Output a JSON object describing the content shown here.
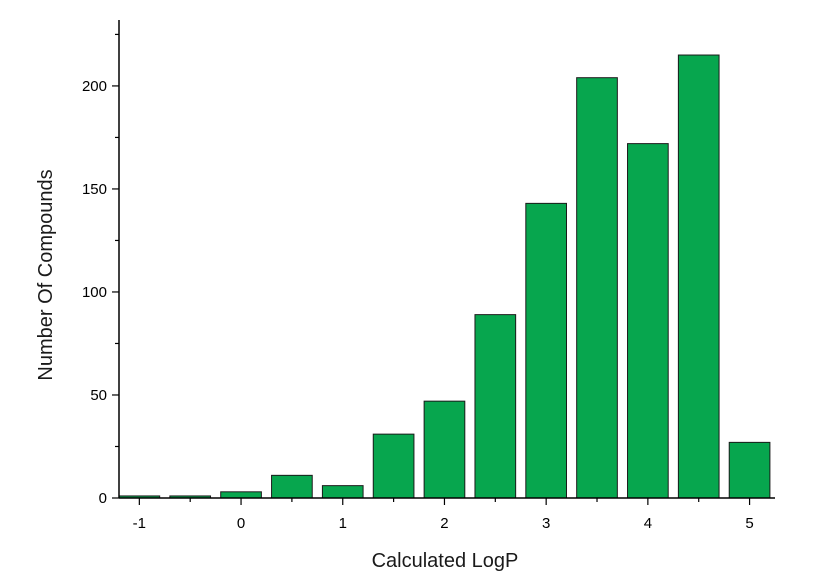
{
  "chart_data": {
    "type": "bar",
    "title": "",
    "xlabel": "Calculated LogP",
    "ylabel": "Number Of Compounds",
    "x": [
      -1,
      -0.5,
      0,
      0.5,
      1,
      1.5,
      2,
      2.5,
      3,
      3.5,
      4,
      4.5,
      5
    ],
    "values": [
      1,
      1,
      3,
      11,
      6,
      31,
      47,
      89,
      143,
      204,
      172,
      215,
      27
    ],
    "xlim": [
      -1.2,
      5.25
    ],
    "ylim": [
      0,
      232
    ],
    "x_ticks": [
      -1,
      0,
      1,
      2,
      3,
      4,
      5
    ],
    "y_ticks": [
      0,
      50,
      100,
      150,
      200
    ],
    "bar_color": "#07a64e",
    "bar_edge_color": "#1a1a1a",
    "grid": false,
    "legend": "none"
  }
}
